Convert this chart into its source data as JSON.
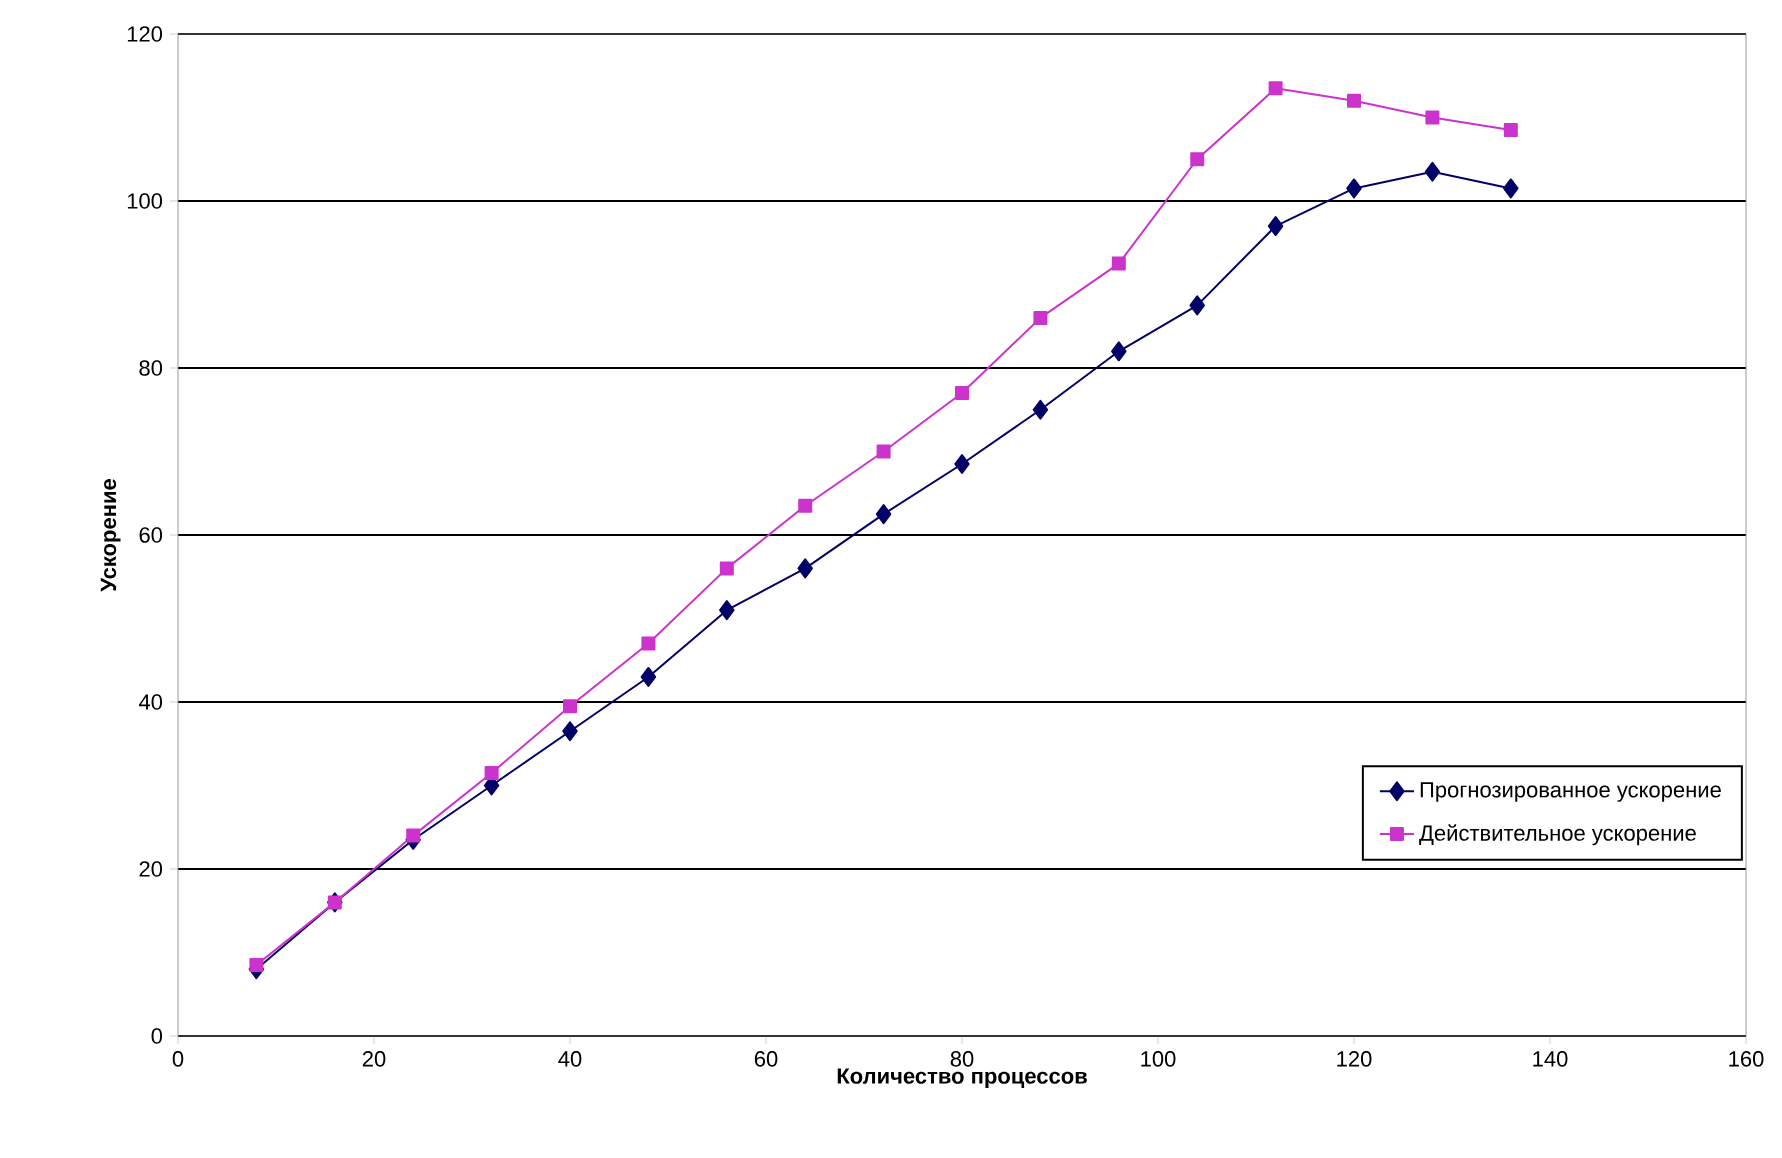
{
  "chart_data": {
    "type": "line",
    "xlabel": "Количество процессов",
    "ylabel": "Ускорение",
    "x": [
      8,
      16,
      24,
      32,
      40,
      48,
      56,
      64,
      72,
      80,
      88,
      96,
      104,
      112,
      120,
      128,
      136
    ],
    "series": [
      {
        "name": "Прогнозированное ускорение",
        "color": "#000066",
        "marker": "diamond",
        "values": [
          8,
          16,
          23.5,
          30,
          36.5,
          43,
          51,
          56,
          62.5,
          68.5,
          75,
          82,
          87.5,
          97,
          101.5,
          103.5,
          101.5
        ]
      },
      {
        "name": "Действительное ускорение",
        "color": "#cc33cc",
        "marker": "square",
        "values": [
          8.5,
          16,
          24,
          31.5,
          39.5,
          47,
          56,
          63.5,
          70,
          77,
          86,
          92.5,
          105,
          113.5,
          112,
          110,
          108.5
        ]
      }
    ],
    "xlim": [
      0,
      160
    ],
    "xticks": [
      0,
      20,
      40,
      60,
      80,
      100,
      120,
      140,
      160
    ],
    "ylim": [
      0,
      120
    ],
    "yticks": [
      0,
      20,
      40,
      60,
      80,
      100,
      120
    ],
    "grid": "y",
    "legend": "bottom right"
  }
}
